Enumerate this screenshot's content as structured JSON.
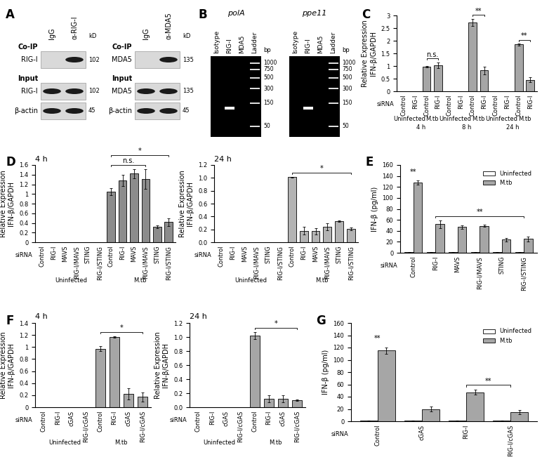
{
  "panel_labels": [
    "A",
    "B",
    "C",
    "D",
    "E",
    "F",
    "G"
  ],
  "blots": [
    {
      "lanes": [
        "IgG",
        "α-RIG-I"
      ],
      "kd_header": "kD",
      "sections": [
        {
          "name": "Co-IP",
          "rows": [
            {
              "label": "RIG-I",
              "kd": 102,
              "bands": [
                false,
                true
              ]
            }
          ]
        },
        {
          "name": "Input",
          "rows": [
            {
              "label": "RIG-I",
              "kd": 102,
              "bands": [
                true,
                true
              ]
            },
            {
              "label": "β-actin",
              "kd": 45,
              "bands": [
                true,
                true
              ]
            }
          ]
        }
      ]
    },
    {
      "lanes": [
        "IgG",
        "α-MDA5"
      ],
      "kd_header": "kD",
      "sections": [
        {
          "name": "Co-IP",
          "rows": [
            {
              "label": "MDA5",
              "kd": 135,
              "bands": [
                false,
                true
              ]
            }
          ]
        },
        {
          "name": "Input",
          "rows": [
            {
              "label": "MDA5",
              "kd": 135,
              "bands": [
                true,
                true
              ]
            },
            {
              "label": "β-actin",
              "kd": 45,
              "bands": [
                true,
                true
              ]
            }
          ]
        }
      ]
    }
  ],
  "gels": {
    "lanes": [
      "Isotype",
      "RIG-I",
      "MDA5",
      "Ladder"
    ],
    "ladder_lane": "Ladder",
    "bp_header": "bp",
    "ladder": [
      1000,
      750,
      500,
      300,
      150,
      50
    ],
    "gels": [
      {
        "title": "polA",
        "band_lane": "RIG-I",
        "band_bp": 120
      },
      {
        "title": "ppe11",
        "band_lane": "RIG-I",
        "band_bp": 120
      }
    ]
  },
  "chart_data": [
    {
      "type": "bar",
      "ylabel": "Relative Expression\nIFN-β/GAPDH",
      "xlabel": "siRNA",
      "color": "#a6a6a6",
      "categories": [
        "Control",
        "RIG-I",
        "Control",
        "RIG-I",
        "Control",
        "RIG-I",
        "Control",
        "RIG-I",
        "Control",
        "RIG-I",
        "Control",
        "RIG-I"
      ],
      "group_labels": [
        "Uninfected",
        "Uninfected",
        "M.tb",
        "M.tb",
        "Uninfected",
        "Uninfected",
        "M.tb",
        "M.tb",
        "Uninfected",
        "Uninfected",
        "M.tb",
        "M.tb"
      ],
      "time_labels": [
        "4 h",
        "4 h",
        "4 h",
        "4 h",
        "8 h",
        "8 h",
        "8 h",
        "8 h",
        "24 h",
        "24 h",
        "24 h",
        "24 h"
      ],
      "values": [
        0,
        0,
        0.97,
        1.03,
        0,
        0,
        2.72,
        0.82,
        0,
        0,
        1.85,
        0.45
      ],
      "errors": [
        0,
        0,
        0.03,
        0.12,
        0,
        0,
        0.15,
        0.15,
        0,
        0,
        0.04,
        0.1
      ],
      "ylim": [
        0,
        3
      ],
      "yticks": [
        0,
        0.5,
        1,
        1.5,
        2,
        2.5,
        3
      ],
      "annotations": [
        {
          "text": "n.s.",
          "from": 2,
          "to": 3
        },
        {
          "text": "**",
          "from": 6,
          "to": 7
        },
        {
          "text": "**",
          "from": 10,
          "to": 11
        }
      ]
    },
    {
      "type": "bar",
      "title": "4 h",
      "ylabel": "Relative Expression\nIFN-β/GAPDH",
      "xlabel": "siRNA",
      "color": "#8c8c8c",
      "categories": [
        "Control",
        "RIG-I",
        "MAVS",
        "RIG-I/MAVS",
        "STING",
        "RIG-I/STING",
        "Control",
        "RIG-I",
        "MAVS",
        "RIG-I/MAVS",
        "STING",
        "RIG-I/STING"
      ],
      "group_labels": [
        "Uninfected",
        "Uninfected",
        "Uninfected",
        "Uninfected",
        "Uninfected",
        "Uninfected",
        "M.tb",
        "M.tb",
        "M.tb",
        "M.tb",
        "M.tb",
        "M.tb"
      ],
      "values": [
        0,
        0,
        0,
        0,
        0,
        0,
        1.05,
        1.28,
        1.42,
        1.31,
        0.32,
        0.42
      ],
      "errors": [
        0,
        0,
        0,
        0,
        0,
        0,
        0.07,
        0.12,
        0.1,
        0.2,
        0.03,
        0.08
      ],
      "ylim": [
        0,
        1.6
      ],
      "yticks": [
        0,
        0.2,
        0.4,
        0.6,
        0.8,
        1,
        1.2,
        1.4,
        1.6
      ],
      "annotations": [
        {
          "text": "n.s.",
          "from": 6,
          "to": 9
        },
        {
          "text": "*",
          "from": 6,
          "to": 11
        }
      ]
    },
    {
      "type": "bar",
      "title": "24 h",
      "ylabel": "Relative Expression\nIFN-β/GAPDH",
      "xlabel": "siRNA",
      "color": "#b3b3b3",
      "categories": [
        "Control",
        "RIG-I",
        "MAVS",
        "RIG-I/MAVS",
        "STING",
        "RIG-I/STING",
        "Control",
        "RIG-I",
        "MAVS",
        "RIG-I/MAVS",
        "STING",
        "RIG-I/STING"
      ],
      "group_labels": [
        "Uninfected",
        "Uninfected",
        "Uninfected",
        "Uninfected",
        "Uninfected",
        "Uninfected",
        "M.tb",
        "M.tb",
        "M.tb",
        "M.tb",
        "M.tb",
        "M.tb"
      ],
      "values": [
        0,
        0,
        0,
        0,
        0,
        0,
        1.01,
        0.18,
        0.17,
        0.24,
        0.33,
        0.21
      ],
      "errors": [
        0,
        0,
        0,
        0,
        0,
        0,
        0.01,
        0.06,
        0.05,
        0.05,
        0.01,
        0.02
      ],
      "ylim": [
        0,
        1.2
      ],
      "yticks": [
        {
          "value": 0,
          "label": "0.0"
        },
        0.2,
        0.4,
        0.6,
        0.8,
        {
          "value": 1,
          "label": "1.0"
        },
        1.2
      ],
      "annotations": [
        {
          "text": "*",
          "from": 6,
          "to": 11
        }
      ]
    },
    {
      "type": "bar",
      "ylabel": "IFN-β (pg/ml)",
      "xlabel": "siRNA",
      "legend": "upper right",
      "categories": [
        "Control",
        "RIG-I",
        "MAVS",
        "RIG-I/MAVS",
        "STING",
        "RIG-I/STING"
      ],
      "series": [
        {
          "name": "Uninfected",
          "color": "#ffffff",
          "values": [
            1,
            1,
            1,
            1,
            1,
            1
          ],
          "errors": [
            0.5,
            0.5,
            0.5,
            0.5,
            0.5,
            0.5
          ]
        },
        {
          "name": "M.tb",
          "color": "#a6a6a6",
          "values": [
            128,
            52,
            47,
            49,
            24,
            25
          ],
          "errors": [
            4,
            7,
            3,
            2,
            3,
            4
          ]
        }
      ],
      "ylim": [
        0,
        160
      ],
      "yticks": [
        0,
        20,
        40,
        60,
        80,
        100,
        120,
        140,
        160
      ],
      "annotations": [
        {
          "text": "**",
          "from": 0,
          "to": 0
        },
        {
          "text": "**",
          "from": 1,
          "to": 5
        }
      ]
    },
    {
      "type": "bar",
      "title": "4 h",
      "ylabel": "Relative Expression\nIFN-β/GAPDH",
      "xlabel": "siRNA",
      "color": "#a6a6a6",
      "categories": [
        "Control",
        "RIG-I",
        "cGAS",
        "RIG-I/cGAS",
        "Control",
        "RIG-I",
        "cGAS",
        "RIG-I/cGAS"
      ],
      "group_labels": [
        "Uninfected",
        "Uninfected",
        "Uninfected",
        "Uninfected",
        "M.tb",
        "M.tb",
        "M.tb",
        "M.tb"
      ],
      "values": [
        0,
        0,
        0,
        0,
        0.97,
        1.17,
        0.22,
        0.17
      ],
      "errors": [
        0,
        0,
        0,
        0,
        0.04,
        0.01,
        0.09,
        0.08
      ],
      "ylim": [
        0,
        1.4
      ],
      "yticks": [
        0,
        0.2,
        0.4,
        0.6,
        0.8,
        1,
        1.2,
        1.4
      ],
      "annotations": [
        {
          "text": "*",
          "from": 4,
          "to": 7
        }
      ]
    },
    {
      "type": "bar",
      "title": "24 h",
      "ylabel": "Relative Expression\nIFN-β/GAPDH",
      "xlabel": "siRNA",
      "color": "#a6a6a6",
      "categories": [
        "Control",
        "RIG-I",
        "cGAS",
        "RIG-I/cGAS",
        "Control",
        "RIG-I",
        "cGAS",
        "RIG-I/cGAS"
      ],
      "group_labels": [
        "Uninfected",
        "Uninfected",
        "Uninfected",
        "Uninfected",
        "M.tb",
        "M.tb",
        "M.tb",
        "M.tb"
      ],
      "values": [
        0,
        0,
        0,
        0,
        1.02,
        0.12,
        0.12,
        0.1
      ],
      "errors": [
        0,
        0,
        0,
        0,
        0.05,
        0.05,
        0.05,
        0.01
      ],
      "ylim": [
        0,
        1.2
      ],
      "yticks": [
        {
          "value": 0,
          "label": "0.0"
        },
        0.2,
        0.4,
        0.6,
        0.8,
        {
          "value": 1,
          "label": "1.0"
        },
        1.2
      ],
      "annotations": [
        {
          "text": "*",
          "from": 4,
          "to": 7
        }
      ]
    },
    {
      "type": "bar",
      "ylabel": "IFN-β (pg/ml)",
      "xlabel": "siRNA",
      "legend": "upper right",
      "categories": [
        "Control",
        "cGAS",
        "RIG-I",
        "RIG-I/cGAS"
      ],
      "series": [
        {
          "name": "Uninfected",
          "color": "#ffffff",
          "values": [
            1,
            1,
            1,
            1
          ],
          "errors": [
            0.5,
            0.5,
            0.5,
            0.5
          ]
        },
        {
          "name": "M.tb",
          "color": "#a6a6a6",
          "values": [
            115,
            20,
            47,
            15
          ],
          "errors": [
            5,
            4,
            4,
            3
          ]
        }
      ],
      "ylim": [
        0,
        160
      ],
      "yticks": [
        0,
        20,
        40,
        60,
        80,
        100,
        120,
        140,
        160
      ],
      "annotations": [
        {
          "text": "**",
          "from": 0,
          "to": 0
        },
        {
          "text": "**",
          "from": 2,
          "to": 3
        }
      ]
    }
  ]
}
